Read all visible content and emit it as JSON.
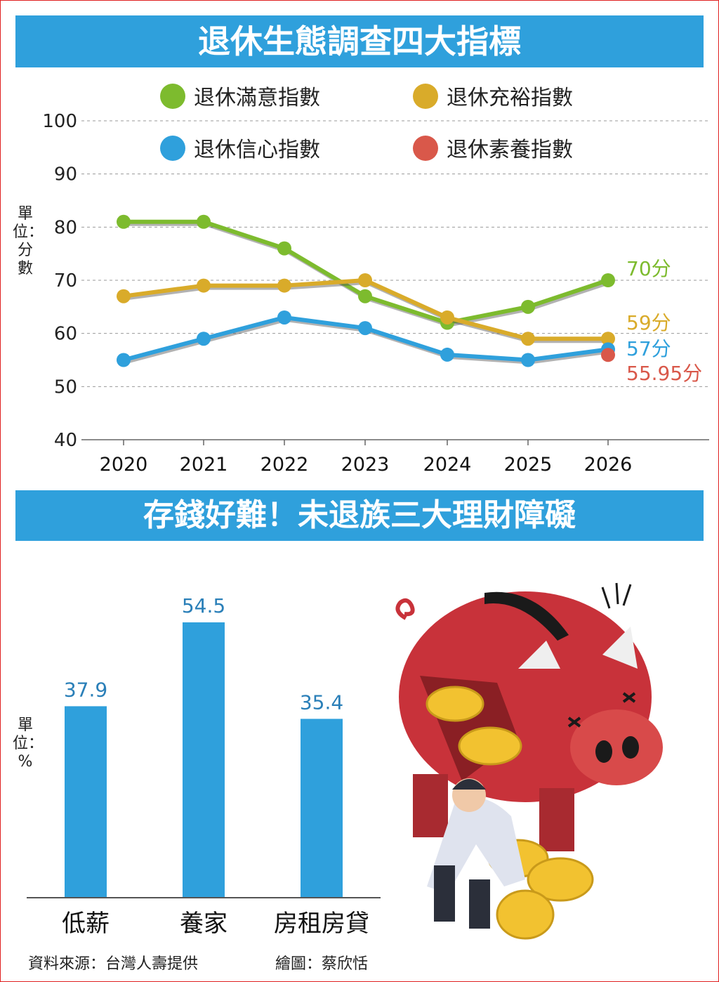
{
  "title_top": "退休生態調查四大指標",
  "title_bottom": "存錢好難！未退族三大理財障礙",
  "unit_top": "單位：分數",
  "unit_bottom": "單位：%",
  "source": "資料來源：台灣人壽提供",
  "credit": "繪圖：蔡欣恬",
  "chart_data": [
    {
      "type": "line",
      "x": [
        "2020",
        "2021",
        "2022",
        "2023",
        "2024",
        "2025",
        "2026"
      ],
      "ylim": [
        40,
        100
      ],
      "yticks": [
        "100",
        "90",
        "80",
        "70",
        "60",
        "50",
        "40"
      ],
      "legend_position": "top",
      "series": [
        {
          "name": "退休滿意指數",
          "color": "#7dbb2e",
          "values": [
            81,
            81,
            76,
            67,
            62,
            65,
            70
          ],
          "end_label": "70分"
        },
        {
          "name": "退休充裕指數",
          "color": "#d9ab2a",
          "values": [
            67,
            69,
            69,
            70,
            63,
            59,
            59
          ],
          "end_label": "59分"
        },
        {
          "name": "退休信心指數",
          "color": "#2fa0dc",
          "values": [
            55,
            59,
            63,
            61,
            56,
            55,
            57
          ],
          "end_label": "57分"
        },
        {
          "name": "退休素養指數",
          "color": "#d9584a",
          "values": [
            null,
            null,
            null,
            null,
            null,
            null,
            55.95
          ],
          "end_label": "55.95分"
        }
      ]
    },
    {
      "type": "bar",
      "categories": [
        "低薪",
        "養家",
        "房租房貸"
      ],
      "values": [
        37.9,
        54.5,
        35.4
      ],
      "value_labels": [
        "37.9",
        "54.5",
        "35.4"
      ],
      "bar_color": "#2fa0dc"
    }
  ]
}
